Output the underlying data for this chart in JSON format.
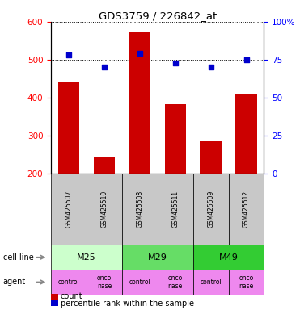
{
  "title": "GDS3759 / 226842_at",
  "samples": [
    "GSM425507",
    "GSM425510",
    "GSM425508",
    "GSM425511",
    "GSM425509",
    "GSM425512"
  ],
  "counts": [
    440,
    245,
    572,
    383,
    285,
    410
  ],
  "percentile_ranks": [
    78,
    70,
    79,
    73,
    70,
    75
  ],
  "ylim_left": [
    200,
    600
  ],
  "ylim_right": [
    0,
    100
  ],
  "yticks_left": [
    200,
    300,
    400,
    500,
    600
  ],
  "yticks_right": [
    0,
    25,
    50,
    75,
    100
  ],
  "bar_color": "#cc0000",
  "dot_color": "#0000cc",
  "sample_bg_color": "#c8c8c8",
  "cell_lines_data": [
    {
      "label": "M25",
      "start": 0,
      "end": 2,
      "color": "#ccffcc"
    },
    {
      "label": "M29",
      "start": 2,
      "end": 4,
      "color": "#66dd66"
    },
    {
      "label": "M49",
      "start": 4,
      "end": 6,
      "color": "#33cc33"
    }
  ],
  "agents": [
    "control",
    "onco\nnase",
    "control",
    "onco\nnase",
    "control",
    "onco\nnase"
  ],
  "agent_color": "#ee88ee",
  "label_cell_line": "cell line",
  "label_agent": "agent",
  "legend_count": "count",
  "legend_percentile": "percentile rank within the sample"
}
